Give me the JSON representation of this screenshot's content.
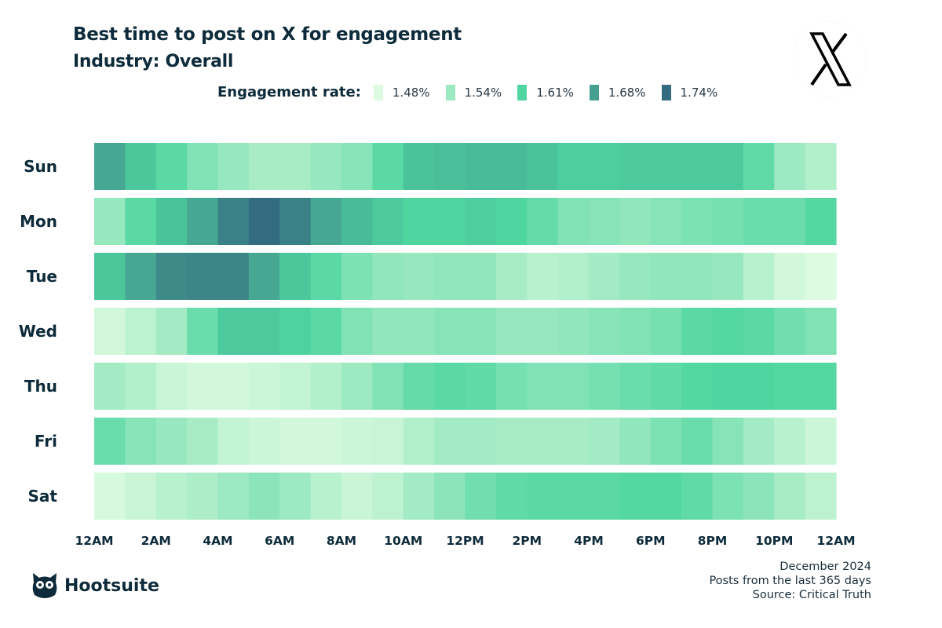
{
  "header": {
    "title": "Best time to post on X for engagement",
    "subtitle": "Industry: Overall"
  },
  "legend": {
    "label": "Engagement rate:",
    "items": [
      {
        "value": "1.48%",
        "color": "#dcfbe0"
      },
      {
        "value": "1.54%",
        "color": "#9de9c1"
      },
      {
        "value": "1.61%",
        "color": "#4fd6a0"
      },
      {
        "value": "1.68%",
        "color": "#45a090"
      },
      {
        "value": "1.74%",
        "color": "#336b80"
      }
    ]
  },
  "logos": {
    "platform": "X",
    "brand": "Hootsuite"
  },
  "footer": {
    "line1": "December 2024",
    "line2": "Posts from the last 365 days",
    "line3": "Source: Critical Truth"
  },
  "chart_data": {
    "type": "heatmap",
    "title": "Best time to post on X for engagement",
    "unit": "engagement rate (%)",
    "color_scale": {
      "values": [
        1.48,
        1.54,
        1.61,
        1.68,
        1.74
      ],
      "colors": [
        "#dcfbe0",
        "#9de9c1",
        "#4fd6a0",
        "#45a090",
        "#336b80"
      ]
    },
    "x_tick_labels": [
      "12AM",
      "2AM",
      "4AM",
      "6AM",
      "8AM",
      "10AM",
      "12PM",
      "2PM",
      "4PM",
      "6PM",
      "8PM",
      "10PM",
      "12AM"
    ],
    "rows": [
      "Sun",
      "Mon",
      "Tue",
      "Wed",
      "Thu",
      "Fri",
      "Sat"
    ],
    "hours_per_row": 24,
    "values": [
      [
        1.67,
        1.63,
        1.6,
        1.565,
        1.545,
        1.53,
        1.53,
        1.545,
        1.56,
        1.6,
        1.635,
        1.64,
        1.645,
        1.645,
        1.635,
        1.62,
        1.62,
        1.625,
        1.625,
        1.625,
        1.625,
        1.595,
        1.54,
        1.52
      ],
      [
        1.545,
        1.6,
        1.635,
        1.67,
        1.715,
        1.74,
        1.715,
        1.67,
        1.645,
        1.625,
        1.61,
        1.61,
        1.62,
        1.61,
        1.59,
        1.565,
        1.56,
        1.55,
        1.56,
        1.57,
        1.575,
        1.585,
        1.585,
        1.605
      ],
      [
        1.63,
        1.67,
        1.705,
        1.71,
        1.71,
        1.67,
        1.63,
        1.6,
        1.57,
        1.55,
        1.545,
        1.55,
        1.55,
        1.53,
        1.515,
        1.52,
        1.535,
        1.545,
        1.55,
        1.55,
        1.545,
        1.515,
        1.49,
        1.48
      ],
      [
        1.49,
        1.51,
        1.535,
        1.585,
        1.625,
        1.625,
        1.615,
        1.6,
        1.565,
        1.55,
        1.55,
        1.56,
        1.56,
        1.545,
        1.545,
        1.55,
        1.56,
        1.565,
        1.575,
        1.6,
        1.605,
        1.6,
        1.58,
        1.565
      ],
      [
        1.535,
        1.52,
        1.5,
        1.49,
        1.49,
        1.495,
        1.505,
        1.52,
        1.54,
        1.565,
        1.59,
        1.6,
        1.595,
        1.575,
        1.565,
        1.565,
        1.575,
        1.585,
        1.595,
        1.605,
        1.61,
        1.61,
        1.605,
        1.605
      ],
      [
        1.585,
        1.56,
        1.545,
        1.53,
        1.505,
        1.495,
        1.49,
        1.49,
        1.495,
        1.5,
        1.52,
        1.535,
        1.535,
        1.53,
        1.53,
        1.53,
        1.535,
        1.55,
        1.57,
        1.585,
        1.56,
        1.535,
        1.515,
        1.495
      ],
      [
        1.485,
        1.5,
        1.515,
        1.525,
        1.54,
        1.555,
        1.54,
        1.515,
        1.5,
        1.51,
        1.535,
        1.555,
        1.58,
        1.595,
        1.6,
        1.6,
        1.6,
        1.605,
        1.605,
        1.595,
        1.57,
        1.555,
        1.53,
        1.51
      ]
    ]
  }
}
